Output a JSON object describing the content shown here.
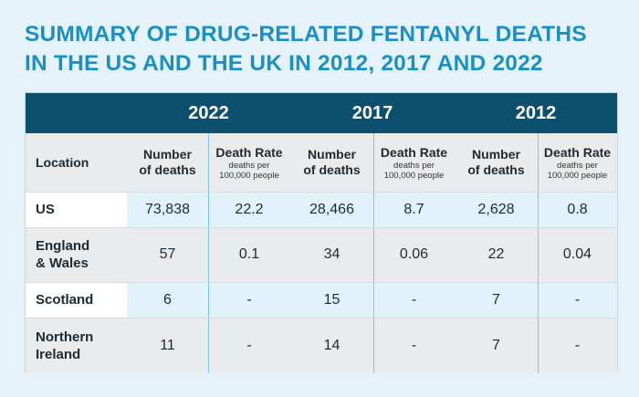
{
  "title": {
    "line1": "SUMMARY OF DRUG-RELATED FENTANYL DEATHS",
    "line2": "IN THE US AND THE UK IN 2012, 2017 AND 2022"
  },
  "years": [
    "2022",
    "2017",
    "2012"
  ],
  "headers": {
    "location": "Location",
    "number_line1": "Number",
    "number_line2": "of deaths",
    "rate": "Death Rate",
    "rate_sub1": "deaths per",
    "rate_sub2": "100,000 people"
  },
  "rows": [
    {
      "location": "US",
      "values": [
        "73,838",
        "22.2",
        "28,466",
        "8.7",
        "2,628",
        "0.8"
      ]
    },
    {
      "location": "England & Wales",
      "values": [
        "57",
        "0.1",
        "34",
        "0.06",
        "22",
        "0.04"
      ]
    },
    {
      "location": "Scotland",
      "values": [
        "6",
        "-",
        "15",
        "-",
        "7",
        "-"
      ]
    },
    {
      "location": "Northern Ireland",
      "values": [
        "11",
        "-",
        "14",
        "-",
        "7",
        "-"
      ]
    }
  ],
  "colors": {
    "title": "#1a8fc4",
    "header_bar": "#0c4f6e",
    "row_light": "#e1f2fb",
    "row_gray": "#e9ebed",
    "background": "#e6f2fa"
  }
}
